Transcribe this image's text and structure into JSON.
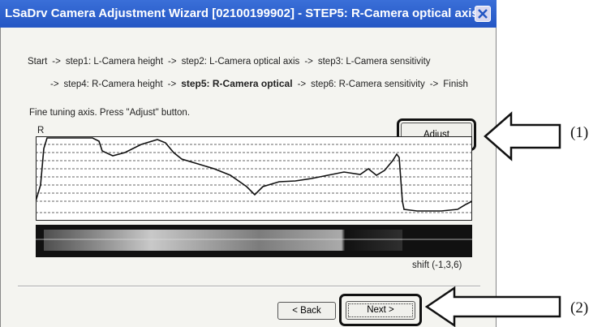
{
  "window": {
    "title": "LSaDrv Camera Adjustment Wizard [02100199902] - STEP5: R-Camera optical axis"
  },
  "steps": {
    "separator": "->",
    "line1": [
      "Start",
      "step1: L-Camera height",
      "step2: L-Camera optical axis",
      "step3: L-Camera sensitivity"
    ],
    "line2": [
      "step4: R-Camera height",
      "step5: R-Camera optical",
      "step6: R-Camera sensitivity",
      "Finish"
    ],
    "current": "step5: R-Camera optical"
  },
  "instruction": "Fine tuning axis. Press \"Adjust\" button.",
  "graph_label": "R",
  "shift_label": "shift (-1,3,6)",
  "buttons": {
    "adjust": "Adjust",
    "back": "< Back",
    "next": "Next >"
  },
  "callouts": [
    "(1)",
    "(2)"
  ]
}
